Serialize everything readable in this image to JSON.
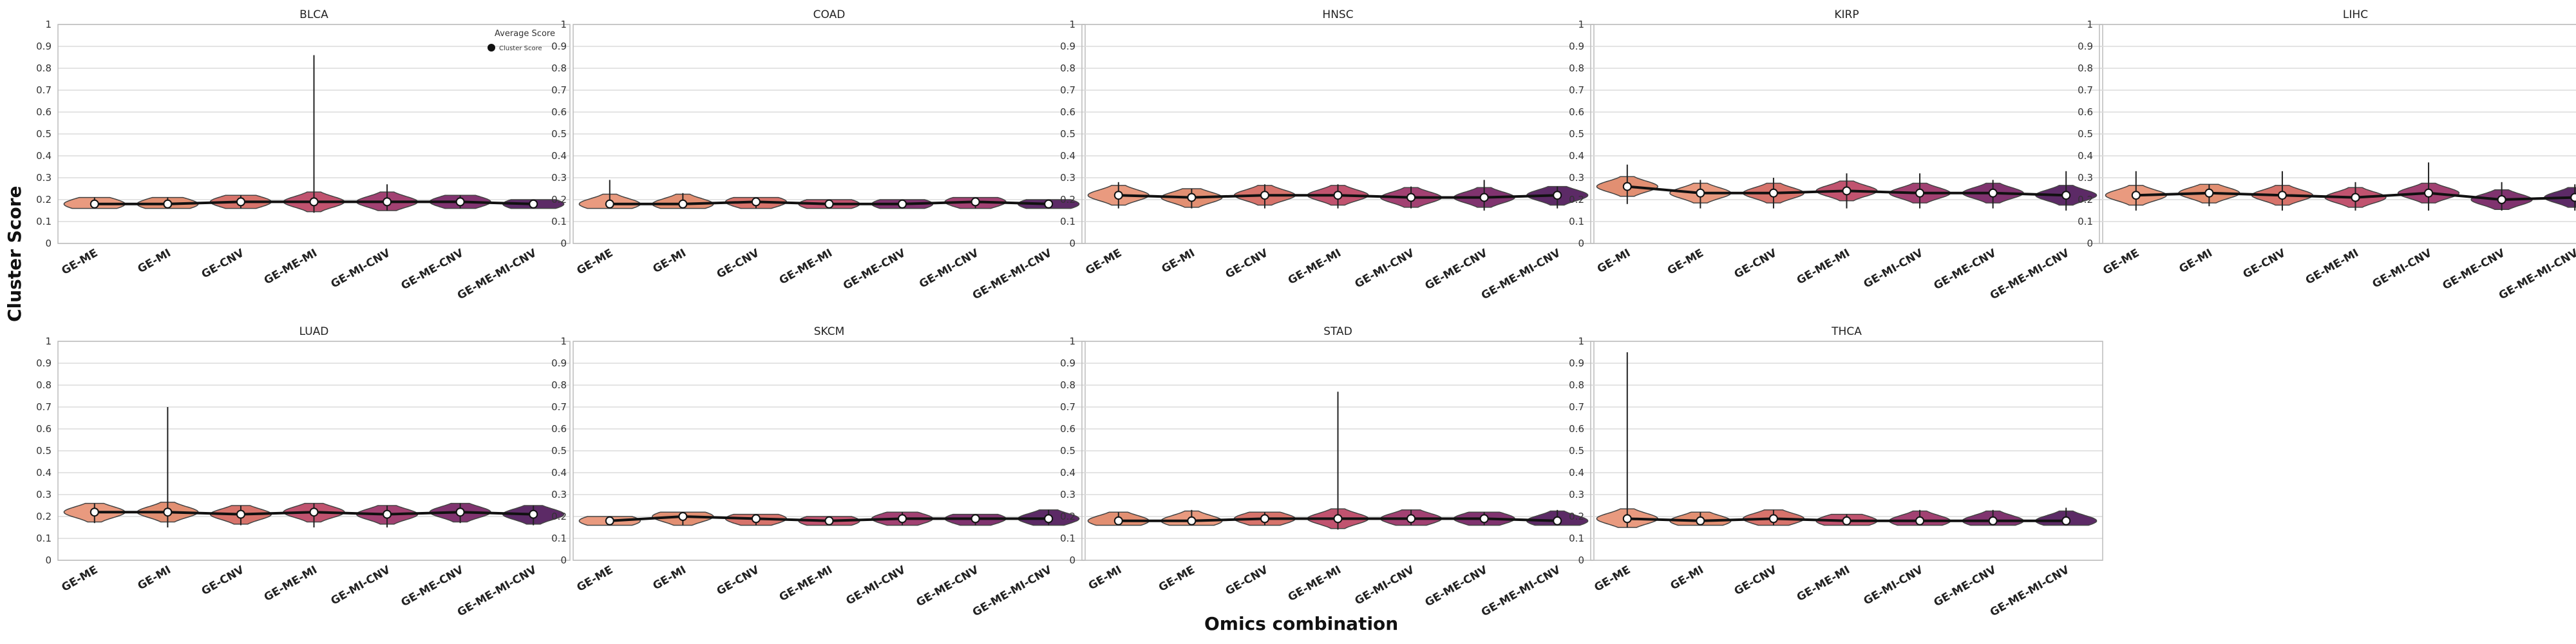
{
  "figure": {
    "ylabel": "Cluster Score",
    "xlabel": "Omics combination",
    "legend_title": "Average Score",
    "legend_entry": "Cluster Score"
  },
  "colors": {
    "GE-ME": "#e99a7f",
    "GE-MI": "#e28f72",
    "GE-CNV": "#d7736b",
    "GE-ME-MI": "#c1536f",
    "GE-MI-CNV": "#a24172",
    "GE-ME-CNV": "#80336f",
    "GE-ME-MI-CNV": "#5c2a66",
    "line": "#111111",
    "grid": "#dcdcdc"
  },
  "chart_data": [
    {
      "type": "violin",
      "title": "BLCA",
      "ylim": [
        0,
        1
      ],
      "categories": [
        "GE-ME",
        "GE-MI",
        "GE-CNV",
        "GE-ME-MI",
        "GE-MI-CNV",
        "GE-ME-CNV",
        "GE-ME-MI-CNV"
      ],
      "values": [
        0.18,
        0.18,
        0.19,
        0.19,
        0.19,
        0.19,
        0.18
      ],
      "max": [
        0.21,
        0.21,
        0.22,
        0.86,
        0.27,
        0.22,
        0.2
      ],
      "min": [
        0.16,
        0.16,
        0.16,
        0.14,
        0.15,
        0.16,
        0.16
      ],
      "legend": "top-right"
    },
    {
      "type": "violin",
      "title": "COAD",
      "ylim": [
        0,
        1
      ],
      "categories": [
        "GE-ME",
        "GE-MI",
        "GE-CNV",
        "GE-ME-MI",
        "GE-ME-CNV",
        "GE-MI-CNV",
        "GE-ME-MI-CNV"
      ],
      "values": [
        0.18,
        0.18,
        0.19,
        0.18,
        0.18,
        0.19,
        0.18
      ],
      "max": [
        0.29,
        0.23,
        0.21,
        0.2,
        0.2,
        0.21,
        0.2
      ],
      "min": [
        0.16,
        0.16,
        0.16,
        0.16,
        0.16,
        0.16,
        0.16
      ]
    },
    {
      "type": "violin",
      "title": "HNSC",
      "ylim": [
        0,
        1
      ],
      "categories": [
        "GE-ME",
        "GE-MI",
        "GE-CNV",
        "GE-ME-MI",
        "GE-MI-CNV",
        "GE-ME-CNV",
        "GE-ME-MI-CNV"
      ],
      "values": [
        0.22,
        0.21,
        0.22,
        0.22,
        0.21,
        0.21,
        0.22
      ],
      "max": [
        0.28,
        0.25,
        0.27,
        0.27,
        0.26,
        0.29,
        0.26
      ],
      "min": [
        0.16,
        0.16,
        0.16,
        0.16,
        0.16,
        0.15,
        0.16
      ]
    },
    {
      "type": "violin",
      "title": "KIRP",
      "ylim": [
        0,
        1
      ],
      "categories": [
        "GE-MI",
        "GE-ME",
        "GE-CNV",
        "GE-ME-MI",
        "GE-MI-CNV",
        "GE-ME-CNV",
        "GE-ME-MI-CNV"
      ],
      "values": [
        0.26,
        0.23,
        0.23,
        0.24,
        0.23,
        0.23,
        0.22
      ],
      "max": [
        0.36,
        0.29,
        0.3,
        0.32,
        0.32,
        0.29,
        0.33
      ],
      "min": [
        0.18,
        0.16,
        0.16,
        0.16,
        0.16,
        0.16,
        0.15
      ]
    },
    {
      "type": "violin",
      "title": "LIHC",
      "ylim": [
        0,
        1
      ],
      "categories": [
        "GE-ME",
        "GE-MI",
        "GE-CNV",
        "GE-ME-MI",
        "GE-MI-CNV",
        "GE-ME-CNV",
        "GE-ME-MI-CNV"
      ],
      "values": [
        0.22,
        0.23,
        0.22,
        0.21,
        0.23,
        0.2,
        0.21
      ],
      "max": [
        0.33,
        0.27,
        0.33,
        0.28,
        0.37,
        0.28,
        0.27
      ],
      "min": [
        0.15,
        0.17,
        0.15,
        0.15,
        0.15,
        0.15,
        0.15
      ]
    },
    {
      "type": "violin",
      "title": "LUAD",
      "ylim": [
        0,
        1
      ],
      "categories": [
        "GE-ME",
        "GE-MI",
        "GE-CNV",
        "GE-ME-MI",
        "GE-MI-CNV",
        "GE-ME-CNV",
        "GE-ME-MI-CNV"
      ],
      "values": [
        0.22,
        0.22,
        0.21,
        0.22,
        0.21,
        0.22,
        0.21
      ],
      "max": [
        0.26,
        0.7,
        0.25,
        0.26,
        0.25,
        0.26,
        0.25
      ],
      "min": [
        0.17,
        0.15,
        0.16,
        0.15,
        0.15,
        0.17,
        0.16
      ]
    },
    {
      "type": "violin",
      "title": "SKCM",
      "ylim": [
        0,
        1
      ],
      "categories": [
        "GE-ME",
        "GE-MI",
        "GE-CNV",
        "GE-ME-MI",
        "GE-MI-CNV",
        "GE-ME-CNV",
        "GE-ME-MI-CNV"
      ],
      "values": [
        0.18,
        0.2,
        0.19,
        0.18,
        0.19,
        0.19,
        0.19
      ],
      "max": [
        0.2,
        0.22,
        0.21,
        0.2,
        0.22,
        0.21,
        0.23
      ],
      "min": [
        0.16,
        0.16,
        0.16,
        0.16,
        0.16,
        0.16,
        0.16
      ]
    },
    {
      "type": "violin",
      "title": "STAD",
      "ylim": [
        0,
        1
      ],
      "categories": [
        "GE-MI",
        "GE-ME",
        "GE-CNV",
        "GE-ME-MI",
        "GE-MI-CNV",
        "GE-ME-CNV",
        "GE-ME-MI-CNV"
      ],
      "values": [
        0.18,
        0.18,
        0.19,
        0.19,
        0.19,
        0.19,
        0.18
      ],
      "max": [
        0.22,
        0.23,
        0.22,
        0.77,
        0.23,
        0.22,
        0.23
      ],
      "min": [
        0.16,
        0.16,
        0.16,
        0.14,
        0.16,
        0.16,
        0.16
      ]
    },
    {
      "type": "violin",
      "title": "THCA",
      "ylim": [
        0,
        1
      ],
      "categories": [
        "GE-ME",
        "GE-MI",
        "GE-CNV",
        "GE-ME-MI",
        "GE-MI-CNV",
        "GE-ME-CNV",
        "GE-ME-MI-CNV"
      ],
      "values": [
        0.19,
        0.18,
        0.19,
        0.18,
        0.18,
        0.18,
        0.18
      ],
      "max": [
        0.95,
        0.22,
        0.23,
        0.21,
        0.23,
        0.23,
        0.24
      ],
      "min": [
        0.15,
        0.16,
        0.16,
        0.16,
        0.16,
        0.16,
        0.16
      ]
    }
  ]
}
